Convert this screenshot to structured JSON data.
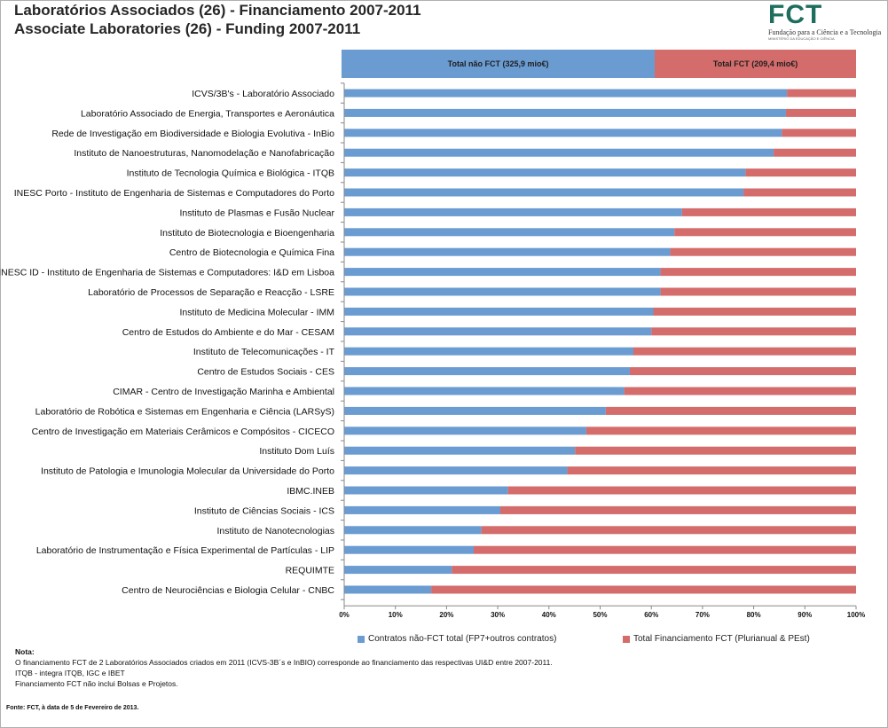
{
  "header": {
    "title_pt": "Laboratórios Associados (26) - Financiamento 2007-2011",
    "title_en": "Associate Laboratories (26) - Funding 2007-2011"
  },
  "logo": {
    "text": "FCT",
    "subtitle": "Fundação para a Ciência e a Tecnologia",
    "ministry": "MINISTÉRIO DA EDUCAÇÃO E CIÊNCIA"
  },
  "summary": {
    "left_label": "Total não FCT (325,9 mio€)",
    "right_label": "Total  FCT (209,4 mio€)",
    "left_fraction": 0.609
  },
  "chart_data": {
    "type": "bar",
    "orientation": "horizontal",
    "stacked": "percent",
    "categories": [
      "ICVS/3B's - Laboratório Associado",
      "Laboratório Associado de Energia, Transportes e Aeronáutica",
      "Rede de Investigação em Biodiversidade e Biologia Evolutiva - InBio",
      "Instituto de Nanoestruturas, Nanomodelação e Nanofabricação",
      "Instituto de Tecnologia Química e Biológica - ITQB",
      "INESC Porto - Instituto de Engenharia de Sistemas e Computadores do Porto",
      "Instituto de Plasmas e Fusão Nuclear",
      "Instituto de Biotecnologia e Bioengenharia",
      "Centro de Biotecnologia e Química Fina",
      "INESC ID - Instituto de Engenharia de Sistemas e Computadores: I&D em Lisboa",
      "Laboratório de Processos de Separação e Reacção - LSRE",
      "Instituto de Medicina Molecular - IMM",
      "Centro de Estudos do Ambiente e do Mar - CESAM",
      "Instituto de Telecomunicações - IT",
      "Centro de Estudos Sociais - CES",
      "CIMAR - Centro de Investigação Marinha e Ambiental",
      "Laboratório de Robótica e Sistemas em Engenharia e Ciência (LARSyS)",
      "Centro de Investigação em Materiais Cerâmicos e Compósitos - CICECO",
      "Instituto Dom Luís",
      "Instituto de Patologia e Imunologia Molecular da Universidade do Porto",
      "IBMC.INEB",
      "Instituto de Ciências Sociais - ICS",
      "Instituto de Nanotecnologias",
      "Laboratório de Instrumentação e Física Experimental de Partículas - LIP",
      "REQUIMTE",
      "Centro de Neurociências e Biologia Celular - CNBC"
    ],
    "series": [
      {
        "name": "Contratos não-FCT total (FP7+outros contratos)",
        "color": "#6a9bd1",
        "values": [
          86.5,
          86.3,
          85.5,
          83.9,
          78.4,
          78.0,
          66.0,
          64.5,
          63.7,
          61.8,
          61.8,
          60.4,
          60.0,
          56.5,
          55.8,
          54.7,
          51.1,
          47.3,
          45.1,
          43.6,
          32.0,
          30.5,
          26.8,
          25.3,
          21.0,
          17.0
        ]
      },
      {
        "name": "Total Financiamento FCT (Plurianual & PEst)",
        "color": "#d46c6c",
        "values": [
          13.5,
          13.7,
          14.5,
          16.1,
          21.6,
          22.0,
          34.0,
          35.5,
          36.3,
          38.2,
          38.2,
          39.6,
          40.0,
          43.5,
          44.2,
          45.3,
          48.9,
          52.7,
          54.9,
          56.4,
          68.0,
          69.5,
          73.2,
          74.7,
          79.0,
          83.0
        ]
      }
    ],
    "x_ticks": [
      "0%",
      "10%",
      "20%",
      "30%",
      "40%",
      "50%",
      "60%",
      "70%",
      "80%",
      "90%",
      "100%"
    ],
    "xlim": [
      0,
      100
    ],
    "grid": false,
    "legend_position": "bottom"
  },
  "notes": {
    "title": "Nota:",
    "lines": [
      "O financiamento FCT de 2 Laboratórios Associados criados em 2011 (ICVS-3B´s e InBIO) corresponde ao financiamento das respectivas UI&D entre 2007-2011.",
      "ITQB - integra ITQB, IGC e IBET",
      "Financiamento FCT não inclui Bolsas e Projetos."
    ],
    "source": "Fonte: FCT, à data de 5 de Fevereiro de 2013."
  }
}
